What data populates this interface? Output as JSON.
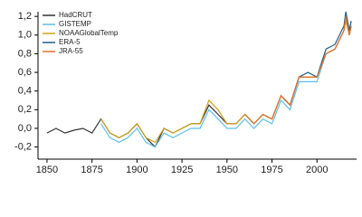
{
  "chart_data": {
    "type": "line",
    "x": [
      1850,
      1855,
      1860,
      1865,
      1870,
      1875,
      1880,
      1885,
      1890,
      1895,
      1900,
      1905,
      1910,
      1915,
      1920,
      1925,
      1930,
      1935,
      1940,
      1945,
      1950,
      1955,
      1960,
      1965,
      1970,
      1975,
      1980,
      1985,
      1990,
      1995,
      2000,
      2005,
      2010,
      2015,
      2016,
      2018,
      2019
    ],
    "series": [
      {
        "name": "HadCRUT",
        "color": "#333333",
        "values": [
          -0.05,
          0.0,
          -0.05,
          -0.02,
          0.0,
          -0.05,
          0.1,
          -0.05,
          -0.1,
          -0.05,
          0.05,
          -0.1,
          -0.2,
          0.0,
          -0.05,
          0.0,
          0.05,
          0.05,
          0.25,
          0.15,
          0.05,
          0.05,
          0.15,
          0.05,
          0.15,
          0.1,
          0.35,
          0.25,
          0.55,
          0.55,
          0.55,
          0.8,
          0.85,
          1.05,
          1.2,
          1.0,
          1.1
        ]
      },
      {
        "name": "GISTEMP",
        "color": "#5bc0eb",
        "values": [
          null,
          null,
          null,
          null,
          null,
          null,
          0.05,
          -0.1,
          -0.15,
          -0.1,
          0.0,
          -0.15,
          -0.2,
          -0.05,
          -0.1,
          -0.05,
          0.0,
          0.0,
          0.2,
          0.1,
          0.0,
          0.0,
          0.1,
          0.0,
          0.1,
          0.05,
          0.3,
          0.2,
          0.5,
          0.5,
          0.5,
          0.8,
          0.85,
          1.05,
          1.2,
          1.0,
          1.15
        ]
      },
      {
        "name": "NOAAGlobalTemp",
        "color": "#d4a017",
        "values": [
          null,
          null,
          null,
          null,
          null,
          null,
          0.1,
          -0.05,
          -0.1,
          -0.05,
          0.05,
          -0.1,
          -0.15,
          0.0,
          -0.05,
          0.0,
          0.05,
          0.05,
          0.3,
          0.2,
          0.05,
          0.05,
          0.15,
          0.05,
          0.15,
          0.1,
          0.35,
          0.25,
          0.55,
          0.55,
          0.55,
          0.8,
          0.85,
          1.05,
          1.15,
          1.0,
          1.1
        ]
      },
      {
        "name": "ERA-5",
        "color": "#1f5f8b",
        "values": [
          null,
          null,
          null,
          null,
          null,
          null,
          null,
          null,
          null,
          null,
          null,
          null,
          null,
          null,
          null,
          null,
          null,
          null,
          null,
          null,
          null,
          null,
          null,
          null,
          null,
          null,
          0.35,
          0.25,
          0.55,
          0.6,
          0.55,
          0.85,
          0.9,
          1.1,
          1.25,
          1.05,
          1.15
        ]
      },
      {
        "name": "JRA-55",
        "color": "#e8702a",
        "values": [
          null,
          null,
          null,
          null,
          null,
          null,
          null,
          null,
          null,
          null,
          null,
          null,
          null,
          null,
          null,
          null,
          null,
          null,
          null,
          null,
          null,
          null,
          0.15,
          0.05,
          0.15,
          0.1,
          0.35,
          0.25,
          0.55,
          0.55,
          0.55,
          0.8,
          0.85,
          1.05,
          1.2,
          1.0,
          1.1
        ]
      }
    ],
    "xlim": [
      1845,
      2022
    ],
    "xticks": [
      1850,
      1875,
      1900,
      1925,
      1950,
      1975,
      2000
    ],
    "ylim": [
      -0.33,
      1.25
    ],
    "yticks": [
      {
        "value": -0.2,
        "label": "-0,2"
      },
      {
        "value": 0,
        "label": "0,0"
      },
      {
        "value": 0.2,
        "label": "0,2"
      },
      {
        "value": 0.4,
        "label": "0,4"
      },
      {
        "value": 0.6,
        "label": "0,6"
      },
      {
        "value": 0.8,
        "label": "0,8"
      },
      {
        "value": 1.0,
        "label": "1,0"
      },
      {
        "value": 1.2,
        "label": "1,2"
      }
    ],
    "legend": "upper left"
  }
}
